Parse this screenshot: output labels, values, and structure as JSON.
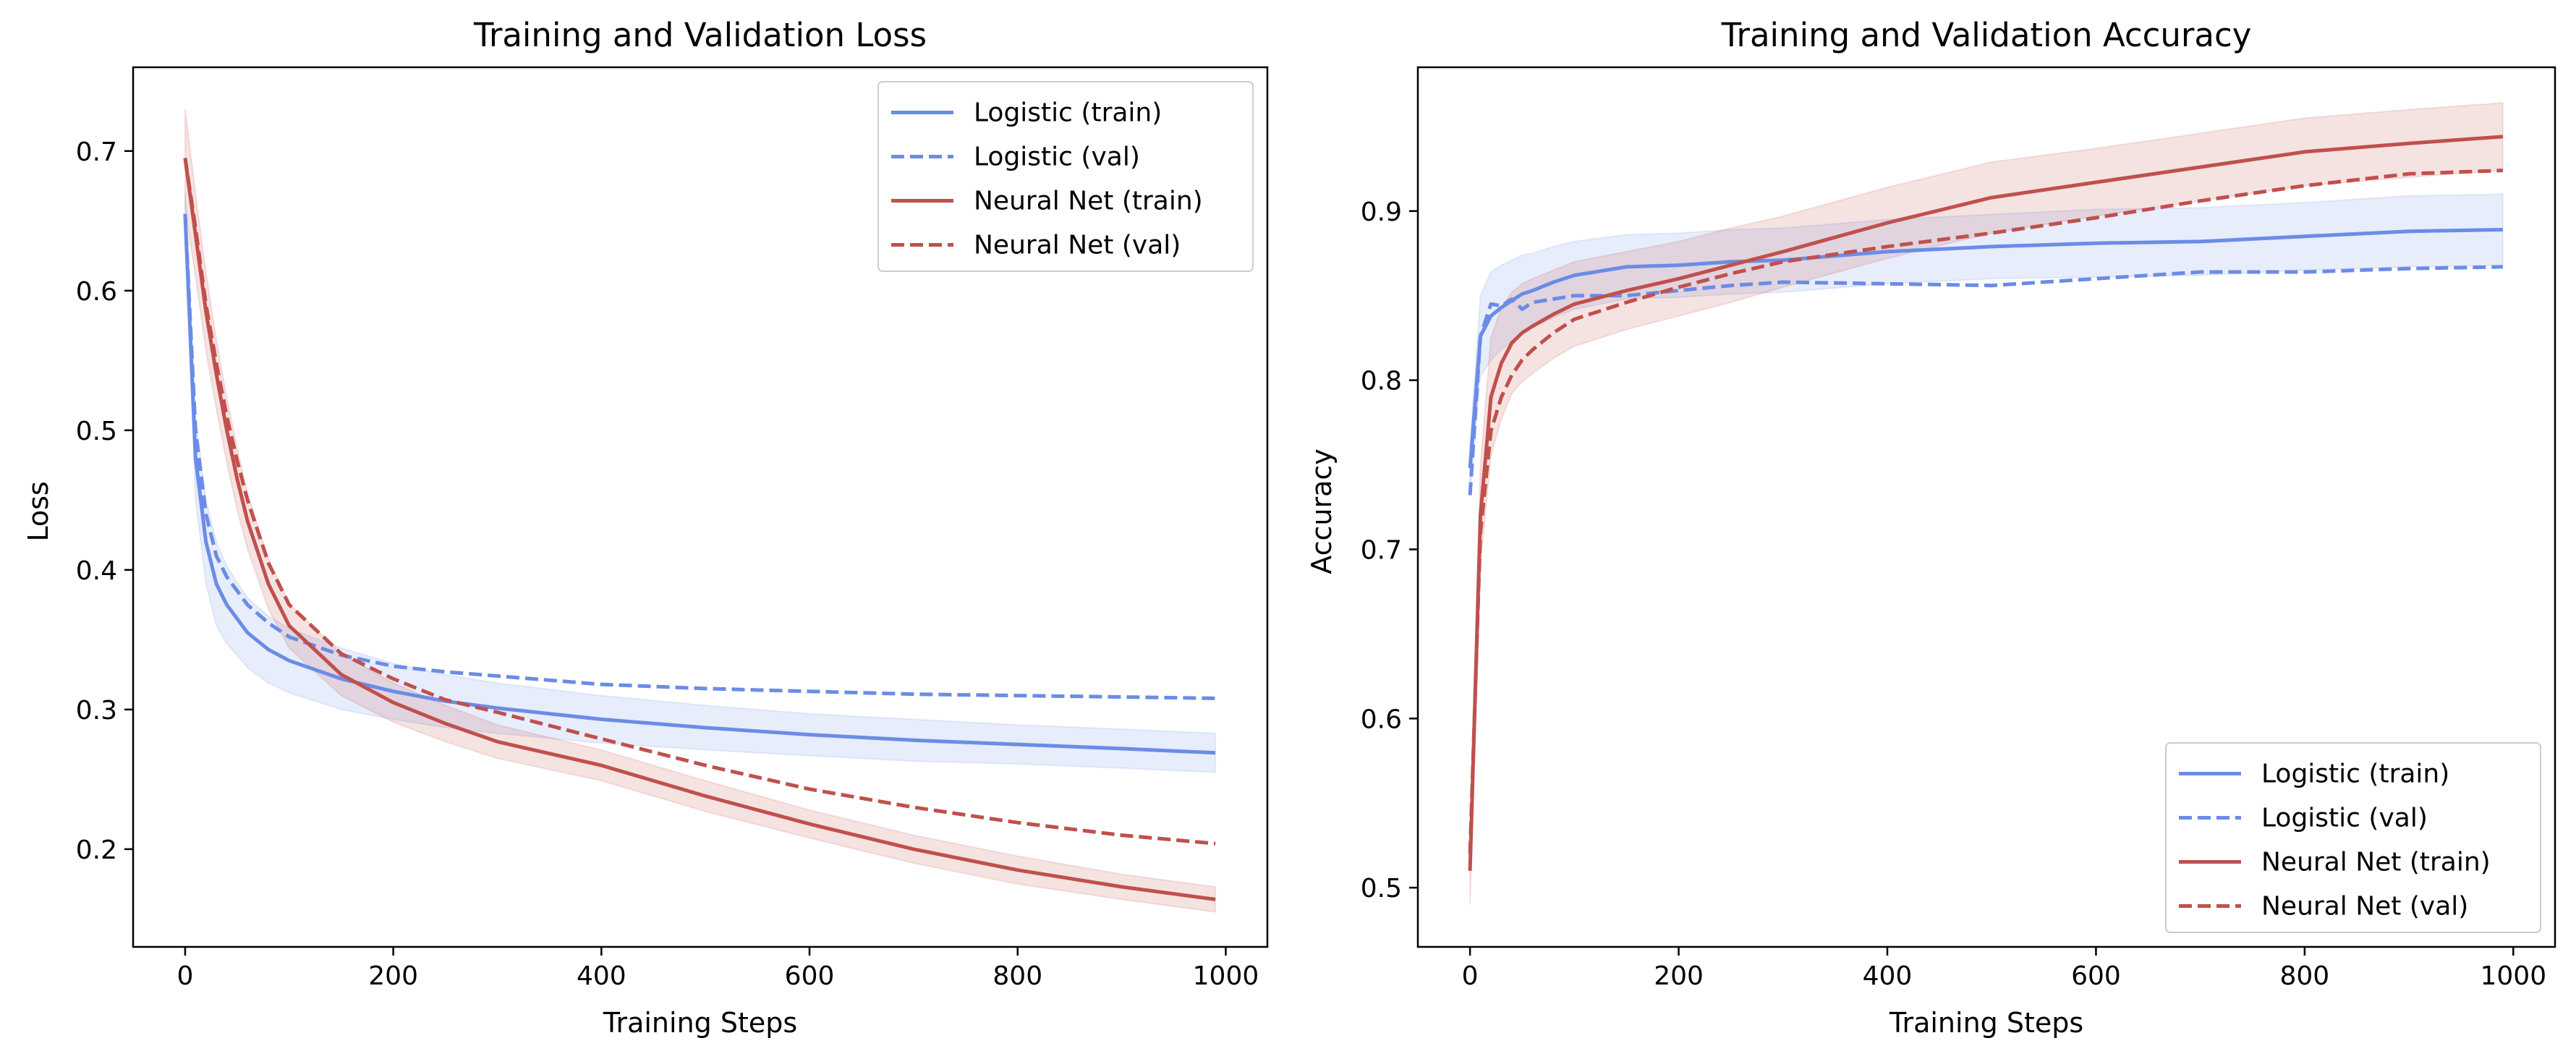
{
  "chart_data": [
    {
      "type": "line",
      "title": "Training and Validation Loss",
      "xlabel": "Training Steps",
      "ylabel": "Loss",
      "xlim": [
        -50,
        1040
      ],
      "ylim": [
        0.13,
        0.76
      ],
      "xticks": [
        0,
        200,
        400,
        600,
        800,
        1000
      ],
      "yticks": [
        0.2,
        0.3,
        0.4,
        0.5,
        0.6,
        0.7
      ],
      "ytick_labels": [
        "0.2",
        "0.3",
        "0.4",
        "0.5",
        "0.6",
        "0.7"
      ],
      "grid": false,
      "legend_position": "top-right",
      "x": [
        0,
        10,
        20,
        30,
        40,
        50,
        60,
        80,
        100,
        150,
        200,
        250,
        300,
        400,
        500,
        600,
        700,
        800,
        900,
        990
      ],
      "series": [
        {
          "name": "Logistic (train)",
          "color": "#6b8ce6",
          "dash": "solid",
          "values": [
            0.655,
            0.48,
            0.42,
            0.39,
            0.375,
            0.365,
            0.355,
            0.343,
            0.335,
            0.322,
            0.313,
            0.306,
            0.301,
            0.293,
            0.287,
            0.282,
            0.278,
            0.275,
            0.272,
            0.269
          ],
          "band": [
            0.015,
            0.03,
            0.03,
            0.03,
            0.028,
            0.026,
            0.025,
            0.024,
            0.023,
            0.022,
            0.02,
            0.019,
            0.018,
            0.017,
            0.016,
            0.015,
            0.015,
            0.014,
            0.014,
            0.014
          ]
        },
        {
          "name": "Logistic (val)",
          "color": "#6b8ce6",
          "dash": "dashed",
          "values": [
            0.655,
            0.5,
            0.44,
            0.41,
            0.395,
            0.385,
            0.375,
            0.362,
            0.352,
            0.339,
            0.331,
            0.327,
            0.324,
            0.318,
            0.315,
            0.313,
            0.311,
            0.31,
            0.309,
            0.308
          ]
        },
        {
          "name": "Neural Net (train)",
          "color": "#c0504d",
          "dash": "solid",
          "values": [
            0.695,
            0.64,
            0.585,
            0.54,
            0.5,
            0.465,
            0.435,
            0.39,
            0.36,
            0.325,
            0.305,
            0.29,
            0.277,
            0.26,
            0.238,
            0.218,
            0.2,
            0.185,
            0.173,
            0.164
          ],
          "band": [
            0.035,
            0.03,
            0.028,
            0.025,
            0.023,
            0.022,
            0.02,
            0.018,
            0.016,
            0.015,
            0.014,
            0.013,
            0.012,
            0.011,
            0.011,
            0.01,
            0.01,
            0.01,
            0.009,
            0.009
          ]
        },
        {
          "name": "Neural Net (val)",
          "color": "#c0504d",
          "dash": "dashed",
          "values": [
            0.695,
            0.645,
            0.59,
            0.548,
            0.51,
            0.478,
            0.45,
            0.405,
            0.375,
            0.34,
            0.322,
            0.307,
            0.298,
            0.279,
            0.26,
            0.243,
            0.23,
            0.219,
            0.21,
            0.204
          ]
        }
      ]
    },
    {
      "type": "line",
      "title": "Training and Validation Accuracy",
      "xlabel": "Training Steps",
      "ylabel": "Accuracy",
      "xlim": [
        -50,
        1040
      ],
      "ylim": [
        0.465,
        0.985
      ],
      "xticks": [
        0,
        200,
        400,
        600,
        800,
        1000
      ],
      "yticks": [
        0.5,
        0.6,
        0.7,
        0.8,
        0.9
      ],
      "ytick_labels": [
        "0.5",
        "0.6",
        "0.7",
        "0.8",
        "0.9"
      ],
      "grid": false,
      "legend_position": "bottom-right",
      "x": [
        0,
        10,
        20,
        30,
        40,
        50,
        60,
        80,
        100,
        150,
        200,
        250,
        300,
        400,
        500,
        600,
        700,
        800,
        900,
        990
      ],
      "series": [
        {
          "name": "Logistic (train)",
          "color": "#6b8ce6",
          "dash": "solid",
          "values": [
            0.748,
            0.826,
            0.838,
            0.843,
            0.847,
            0.851,
            0.853,
            0.858,
            0.862,
            0.867,
            0.868,
            0.87,
            0.871,
            0.876,
            0.879,
            0.881,
            0.882,
            0.885,
            0.888,
            0.889
          ],
          "band": [
            0.015,
            0.024,
            0.026,
            0.025,
            0.024,
            0.023,
            0.022,
            0.021,
            0.02,
            0.019,
            0.019,
            0.019,
            0.019,
            0.019,
            0.019,
            0.02,
            0.02,
            0.02,
            0.021,
            0.021
          ]
        },
        {
          "name": "Logistic (val)",
          "color": "#6b8ce6",
          "dash": "dashed",
          "values": [
            0.732,
            0.826,
            0.845,
            0.844,
            0.848,
            0.842,
            0.846,
            0.848,
            0.85,
            0.85,
            0.853,
            0.856,
            0.858,
            0.857,
            0.856,
            0.86,
            0.864,
            0.864,
            0.866,
            0.867
          ]
        },
        {
          "name": "Neural Net (train)",
          "color": "#c0504d",
          "dash": "solid",
          "values": [
            0.51,
            0.72,
            0.79,
            0.81,
            0.822,
            0.828,
            0.832,
            0.839,
            0.845,
            0.853,
            0.86,
            0.868,
            0.876,
            0.893,
            0.908,
            0.917,
            0.926,
            0.935,
            0.94,
            0.944
          ],
          "band": [
            0.02,
            0.03,
            0.035,
            0.033,
            0.03,
            0.029,
            0.028,
            0.026,
            0.025,
            0.023,
            0.022,
            0.022,
            0.021,
            0.021,
            0.021,
            0.02,
            0.02,
            0.02,
            0.02,
            0.02
          ]
        },
        {
          "name": "Neural Net (val)",
          "color": "#c0504d",
          "dash": "dashed",
          "values": [
            0.52,
            0.71,
            0.77,
            0.79,
            0.803,
            0.812,
            0.818,
            0.828,
            0.836,
            0.846,
            0.855,
            0.863,
            0.87,
            0.879,
            0.887,
            0.896,
            0.906,
            0.915,
            0.922,
            0.924
          ]
        }
      ]
    }
  ]
}
